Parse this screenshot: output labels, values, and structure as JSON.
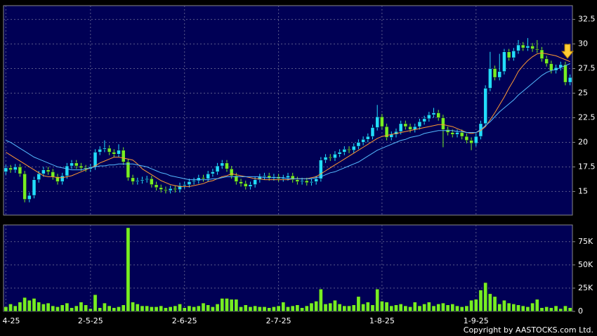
{
  "chart_data": [
    {
      "type": "candlestick",
      "up_color": "#22ddff",
      "down_color": "#77ee22",
      "ylim": [
        12.6,
        33.9
      ],
      "yticks": [
        15,
        17.5,
        20,
        22.5,
        25,
        27.5,
        30,
        32.5
      ],
      "grid": true,
      "open": [
        17.0,
        17.4,
        17.2,
        17.5,
        16.8,
        14.2,
        14.6,
        16.2,
        16.8,
        17.2,
        17.0,
        16.5,
        16.0,
        16.6,
        17.6,
        17.9,
        17.6,
        17.4,
        17.3,
        17.5,
        19.0,
        19.3,
        19.4,
        19.0,
        18.8,
        19.2,
        18.0,
        16.4,
        16.0,
        16.1,
        16.2,
        16.3,
        15.7,
        15.4,
        15.2,
        15.1,
        15.3,
        15.2,
        15.6,
        15.7,
        16.0,
        16.1,
        16.4,
        16.3,
        16.8,
        17.0,
        17.6,
        17.9,
        17.3,
        16.6,
        16.0,
        15.8,
        15.5,
        15.7,
        16.2,
        16.5,
        16.6,
        16.4,
        16.5,
        16.3,
        16.4,
        16.6,
        16.2,
        16.0,
        16.1,
        15.9,
        16.0,
        16.3,
        18.2,
        18.5,
        18.4,
        18.8,
        19.0,
        19.3,
        19.2,
        19.6,
        20.0,
        20.3,
        20.6,
        21.5,
        22.6,
        21.6,
        20.5,
        20.8,
        21.1,
        21.9,
        21.6,
        21.3,
        21.6,
        22.1,
        22.4,
        22.8,
        23.0,
        22.5,
        21.3,
        21.0,
        20.8,
        21.0,
        20.6,
        20.2,
        19.9,
        20.6,
        21.9,
        25.5,
        27.5,
        26.6,
        27.2,
        29.2,
        28.6,
        29.3,
        29.9,
        29.6,
        29.8,
        29.5,
        29.4,
        28.5,
        28.0,
        27.3,
        27.6,
        27.9,
        26.1
      ],
      "high": [
        17.7,
        17.7,
        17.8,
        17.8,
        17.1,
        14.9,
        16.5,
        17.1,
        17.5,
        17.5,
        17.3,
        16.8,
        16.9,
        17.9,
        18.2,
        18.2,
        17.9,
        17.7,
        17.8,
        19.3,
        19.6,
        20.2,
        19.7,
        19.3,
        19.8,
        19.5,
        18.3,
        16.7,
        16.4,
        16.5,
        16.6,
        16.6,
        16.0,
        15.7,
        15.5,
        15.6,
        15.6,
        15.9,
        16.0,
        16.3,
        16.4,
        16.7,
        16.7,
        17.1,
        17.3,
        17.9,
        18.2,
        18.2,
        17.6,
        16.9,
        16.3,
        16.1,
        16.0,
        16.5,
        16.8,
        16.9,
        16.9,
        16.8,
        16.8,
        16.7,
        16.9,
        16.9,
        16.5,
        16.4,
        16.4,
        16.3,
        16.6,
        18.5,
        18.8,
        18.8,
        19.1,
        19.3,
        19.6,
        19.6,
        19.9,
        20.3,
        20.6,
        20.9,
        21.8,
        23.8,
        22.9,
        21.9,
        21.1,
        21.4,
        22.2,
        22.2,
        21.9,
        21.9,
        22.4,
        22.7,
        23.1,
        23.5,
        23.3,
        22.8,
        21.6,
        21.3,
        21.3,
        21.3,
        20.9,
        20.5,
        20.9,
        22.2,
        25.8,
        29.2,
        27.8,
        29.0,
        29.5,
        29.5,
        29.6,
        30.4,
        30.2,
        30.6,
        30.1,
        30.4,
        29.7,
        28.8,
        28.3,
        27.9,
        28.2,
        28.2,
        26.9
      ],
      "low": [
        16.7,
        16.9,
        16.9,
        16.5,
        13.9,
        13.9,
        14.3,
        15.9,
        16.5,
        16.7,
        16.2,
        15.7,
        15.7,
        16.3,
        17.3,
        17.3,
        17.1,
        17.0,
        17.0,
        17.2,
        18.7,
        19.0,
        18.7,
        18.5,
        18.5,
        17.7,
        16.1,
        15.7,
        15.7,
        15.8,
        15.9,
        15.4,
        15.1,
        14.9,
        14.8,
        14.8,
        14.9,
        14.9,
        15.3,
        15.4,
        15.7,
        15.8,
        16.0,
        16.0,
        16.5,
        16.7,
        17.3,
        17.0,
        16.3,
        15.7,
        15.5,
        15.2,
        15.2,
        15.4,
        15.9,
        16.2,
        16.1,
        16.1,
        16.0,
        16.0,
        16.1,
        15.9,
        15.7,
        15.7,
        15.6,
        15.6,
        15.7,
        16.0,
        17.9,
        18.1,
        18.1,
        18.5,
        18.7,
        18.9,
        18.9,
        19.3,
        19.7,
        20.0,
        20.3,
        21.2,
        21.3,
        20.2,
        20.2,
        20.5,
        20.8,
        21.3,
        21.0,
        21.0,
        21.3,
        21.8,
        22.1,
        22.5,
        22.2,
        19.5,
        20.7,
        20.5,
        20.5,
        20.3,
        19.9,
        19.2,
        19.6,
        20.3,
        21.6,
        25.2,
        26.3,
        26.3,
        26.9,
        28.3,
        28.3,
        29.0,
        29.3,
        29.3,
        29.2,
        29.1,
        28.2,
        27.7,
        27.0,
        27.0,
        27.3,
        25.8,
        25.8
      ],
      "close": [
        17.4,
        17.2,
        17.5,
        16.8,
        14.2,
        14.6,
        16.2,
        16.8,
        17.2,
        17.0,
        16.5,
        16.0,
        16.6,
        17.6,
        17.9,
        17.6,
        17.4,
        17.3,
        17.5,
        19.0,
        19.3,
        19.4,
        19.0,
        18.8,
        19.2,
        18.0,
        16.4,
        16.0,
        16.1,
        16.2,
        16.3,
        15.7,
        15.4,
        15.2,
        15.1,
        15.3,
        15.2,
        15.6,
        15.7,
        16.0,
        16.1,
        16.4,
        16.3,
        16.8,
        17.0,
        17.6,
        17.9,
        17.3,
        16.6,
        16.0,
        15.8,
        15.5,
        15.7,
        16.2,
        16.5,
        16.6,
        16.4,
        16.5,
        16.3,
        16.4,
        16.6,
        16.2,
        16.0,
        16.1,
        15.9,
        16.0,
        16.3,
        18.2,
        18.5,
        18.4,
        18.8,
        19.0,
        19.3,
        19.2,
        19.6,
        20.0,
        20.3,
        20.6,
        21.5,
        22.6,
        21.6,
        20.5,
        20.8,
        21.1,
        21.9,
        21.6,
        21.3,
        21.6,
        22.1,
        22.4,
        22.8,
        23.0,
        22.5,
        21.3,
        21.0,
        20.8,
        21.0,
        20.6,
        20.2,
        19.9,
        20.6,
        21.9,
        25.5,
        27.5,
        26.6,
        27.2,
        29.2,
        28.6,
        29.3,
        29.9,
        29.6,
        29.8,
        29.5,
        29.4,
        28.5,
        28.0,
        27.3,
        27.6,
        27.9,
        26.1,
        26.6
      ],
      "series": [
        {
          "color": "#ff9933",
          "values": [
            19.0,
            18.7,
            18.4,
            18.1,
            17.8,
            17.5,
            17.2,
            16.9,
            16.6,
            16.5,
            16.5,
            16.4,
            16.4,
            16.5,
            16.6,
            16.8,
            17.0,
            17.2,
            17.4,
            17.6,
            17.9,
            18.1,
            18.3,
            18.5,
            18.5,
            18.4,
            18.3,
            18.2,
            17.8,
            17.3,
            17.0,
            16.7,
            16.4,
            16.1,
            15.9,
            15.7,
            15.6,
            15.5,
            15.5,
            15.5,
            15.6,
            15.7,
            15.8,
            16.0,
            16.1,
            16.3,
            16.5,
            16.6,
            16.8,
            16.7,
            16.6,
            16.5,
            16.4,
            16.3,
            16.3,
            16.2,
            16.2,
            16.2,
            16.2,
            16.2,
            16.2,
            16.3,
            16.3,
            16.3,
            16.3,
            16.4,
            16.5,
            16.8,
            17.1,
            17.4,
            17.7,
            18.0,
            18.3,
            18.6,
            18.9,
            19.2,
            19.5,
            19.8,
            20.1,
            20.4,
            20.6,
            20.7,
            20.8,
            20.9,
            21.0,
            21.1,
            21.2,
            21.3,
            21.4,
            21.5,
            21.6,
            21.7,
            21.8,
            21.8,
            21.7,
            21.6,
            21.4,
            21.2,
            21.0,
            20.9,
            21.0,
            21.2,
            21.6,
            22.3,
            23.0,
            23.8,
            24.6,
            25.5,
            26.3,
            27.2,
            27.8,
            28.3,
            28.7,
            29.0,
            29.1,
            29.0,
            28.9,
            28.8,
            28.6,
            28.4,
            28.2
          ]
        },
        {
          "color": "#55bbff",
          "values": [
            20.2,
            20.0,
            19.7,
            19.4,
            19.1,
            18.8,
            18.5,
            18.3,
            18.1,
            17.9,
            17.7,
            17.5,
            17.4,
            17.3,
            17.2,
            17.2,
            17.2,
            17.3,
            17.4,
            17.5,
            17.6,
            17.6,
            17.7,
            17.7,
            17.8,
            17.8,
            17.8,
            17.8,
            17.7,
            17.6,
            17.5,
            17.3,
            17.1,
            16.9,
            16.8,
            16.6,
            16.5,
            16.4,
            16.3,
            16.2,
            16.2,
            16.2,
            16.2,
            16.2,
            16.3,
            16.3,
            16.4,
            16.5,
            16.5,
            16.5,
            16.5,
            16.5,
            16.5,
            16.5,
            16.5,
            16.4,
            16.4,
            16.4,
            16.4,
            16.4,
            16.3,
            16.3,
            16.3,
            16.3,
            16.3,
            16.3,
            16.4,
            16.5,
            16.7,
            16.9,
            17.0,
            17.2,
            17.4,
            17.6,
            17.8,
            18.0,
            18.3,
            18.6,
            18.9,
            19.2,
            19.4,
            19.6,
            19.8,
            20.0,
            20.2,
            20.3,
            20.5,
            20.6,
            20.7,
            20.9,
            21.0,
            21.1,
            21.2,
            21.2,
            21.2,
            21.2,
            21.1,
            21.1,
            21.0,
            21.0,
            21.0,
            21.3,
            21.7,
            22.1,
            22.6,
            23.1,
            23.5,
            23.9,
            24.3,
            24.8,
            25.2,
            25.6,
            26.0,
            26.4,
            26.8,
            27.1,
            27.3,
            27.4,
            27.6,
            27.8,
            28.0
          ]
        }
      ]
    },
    {
      "type": "bar",
      "color": "#77ee22",
      "ylim": [
        0,
        93000
      ],
      "yticks": [
        0,
        {
          "value": 25000,
          "label": "25K"
        },
        {
          "value": 50000,
          "label": "50K"
        },
        {
          "value": 75000,
          "label": "75K"
        }
      ],
      "grid": true,
      "categories": [
        "4-25",
        null,
        null,
        null,
        null,
        null,
        null,
        null,
        null,
        null,
        null,
        null,
        null,
        null,
        null,
        null,
        null,
        null,
        "2-5-25",
        null,
        null,
        null,
        null,
        null,
        null,
        null,
        null,
        null,
        null,
        null,
        null,
        null,
        null,
        null,
        null,
        null,
        null,
        null,
        "2-6-25",
        null,
        null,
        null,
        null,
        null,
        null,
        null,
        null,
        null,
        null,
        null,
        null,
        null,
        null,
        null,
        null,
        null,
        null,
        null,
        "2-7-25",
        null,
        null,
        null,
        null,
        null,
        null,
        null,
        null,
        null,
        null,
        null,
        null,
        null,
        null,
        null,
        null,
        null,
        null,
        null,
        null,
        null,
        "1-8-25",
        null,
        null,
        null,
        null,
        null,
        null,
        null,
        null,
        null,
        null,
        null,
        null,
        null,
        null,
        null,
        null,
        null,
        null,
        null,
        "1-9-25",
        null,
        null,
        null,
        null,
        null,
        null,
        null,
        null,
        null,
        null,
        null,
        null,
        null,
        null,
        null,
        null,
        null,
        null,
        null,
        null
      ],
      "values": [
        5000,
        8000,
        6000,
        10000,
        15000,
        12000,
        14000,
        10000,
        8000,
        9000,
        6000,
        5000,
        7000,
        9000,
        4000,
        6000,
        10000,
        7000,
        3000,
        18000,
        4000,
        9000,
        6000,
        4000,
        5000,
        7000,
        90000,
        10000,
        8000,
        6000,
        6000,
        5000,
        5000,
        6000,
        4000,
        5000,
        6000,
        8000,
        4000,
        6000,
        5000,
        6000,
        9000,
        7000,
        5000,
        8000,
        14000,
        14000,
        13000,
        13000,
        5000,
        7000,
        5000,
        6000,
        5000,
        5000,
        4000,
        5000,
        6000,
        10000,
        5000,
        6000,
        7000,
        4000,
        6000,
        9000,
        11000,
        24000,
        8000,
        9000,
        12000,
        8000,
        6000,
        6000,
        7000,
        16000,
        8000,
        10000,
        7000,
        24000,
        11000,
        10000,
        6000,
        7000,
        8000,
        6000,
        5000,
        10000,
        6000,
        8000,
        10000,
        6000,
        8000,
        9000,
        7000,
        8000,
        6000,
        5000,
        6000,
        12000,
        13000,
        23000,
        31000,
        19000,
        16000,
        8000,
        12000,
        9000,
        8000,
        7000,
        6000,
        5000,
        9000,
        13000,
        4000,
        5000,
        4000,
        6000,
        3000,
        6000,
        4000
      ]
    }
  ],
  "copyright": "Copyright by AASTOCKS.com Ltd."
}
